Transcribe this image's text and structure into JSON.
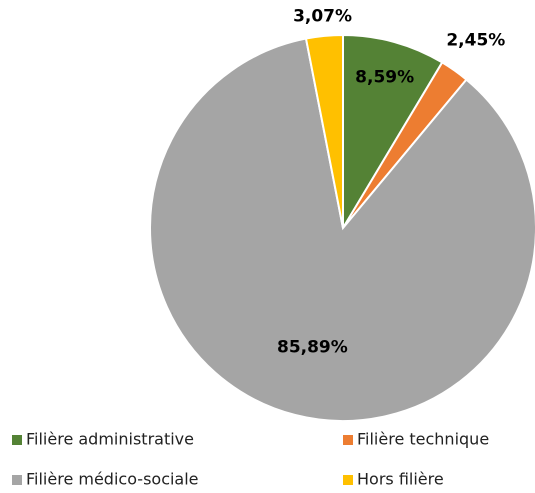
{
  "chart_data": {
    "type": "pie",
    "categories": [
      "Filière administrative",
      "Filière technique",
      "Filière médico-sociale",
      "Hors filière"
    ],
    "values": [
      8.59,
      2.45,
      85.89,
      3.07
    ],
    "value_labels": [
      "8,59%",
      "2,45%",
      "85,89%",
      "3,07%"
    ],
    "colors": [
      "#548235",
      "#ed7d31",
      "#a5a5a5",
      "#ffc000"
    ],
    "legend": "bottom"
  }
}
